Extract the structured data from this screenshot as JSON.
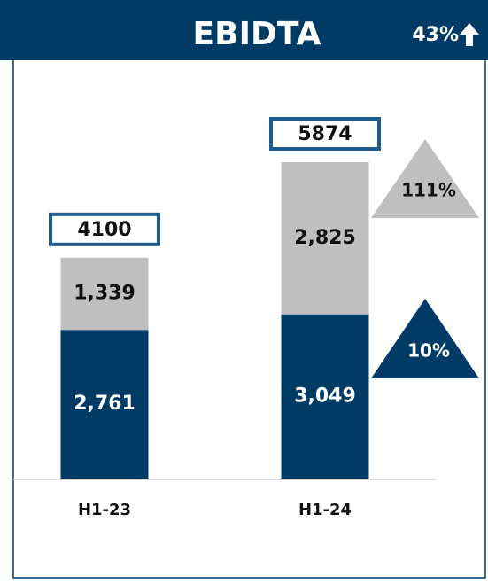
{
  "chart_data": {
    "type": "stacked_bar",
    "title": "EBIDTA",
    "total_growth": "43%",
    "categories": [
      "H1-23",
      "H1-24"
    ],
    "totals": [
      4100,
      5874
    ],
    "series": [
      {
        "color": "#003b66",
        "values": [
          2761,
          3049
        ],
        "value_labels": [
          "2,761",
          "3,049"
        ],
        "growth": "10%"
      },
      {
        "color": "#bfbfbf",
        "values": [
          1339,
          2825
        ],
        "value_labels": [
          "1,339",
          "2,825"
        ],
        "growth": "111%"
      }
    ]
  }
}
